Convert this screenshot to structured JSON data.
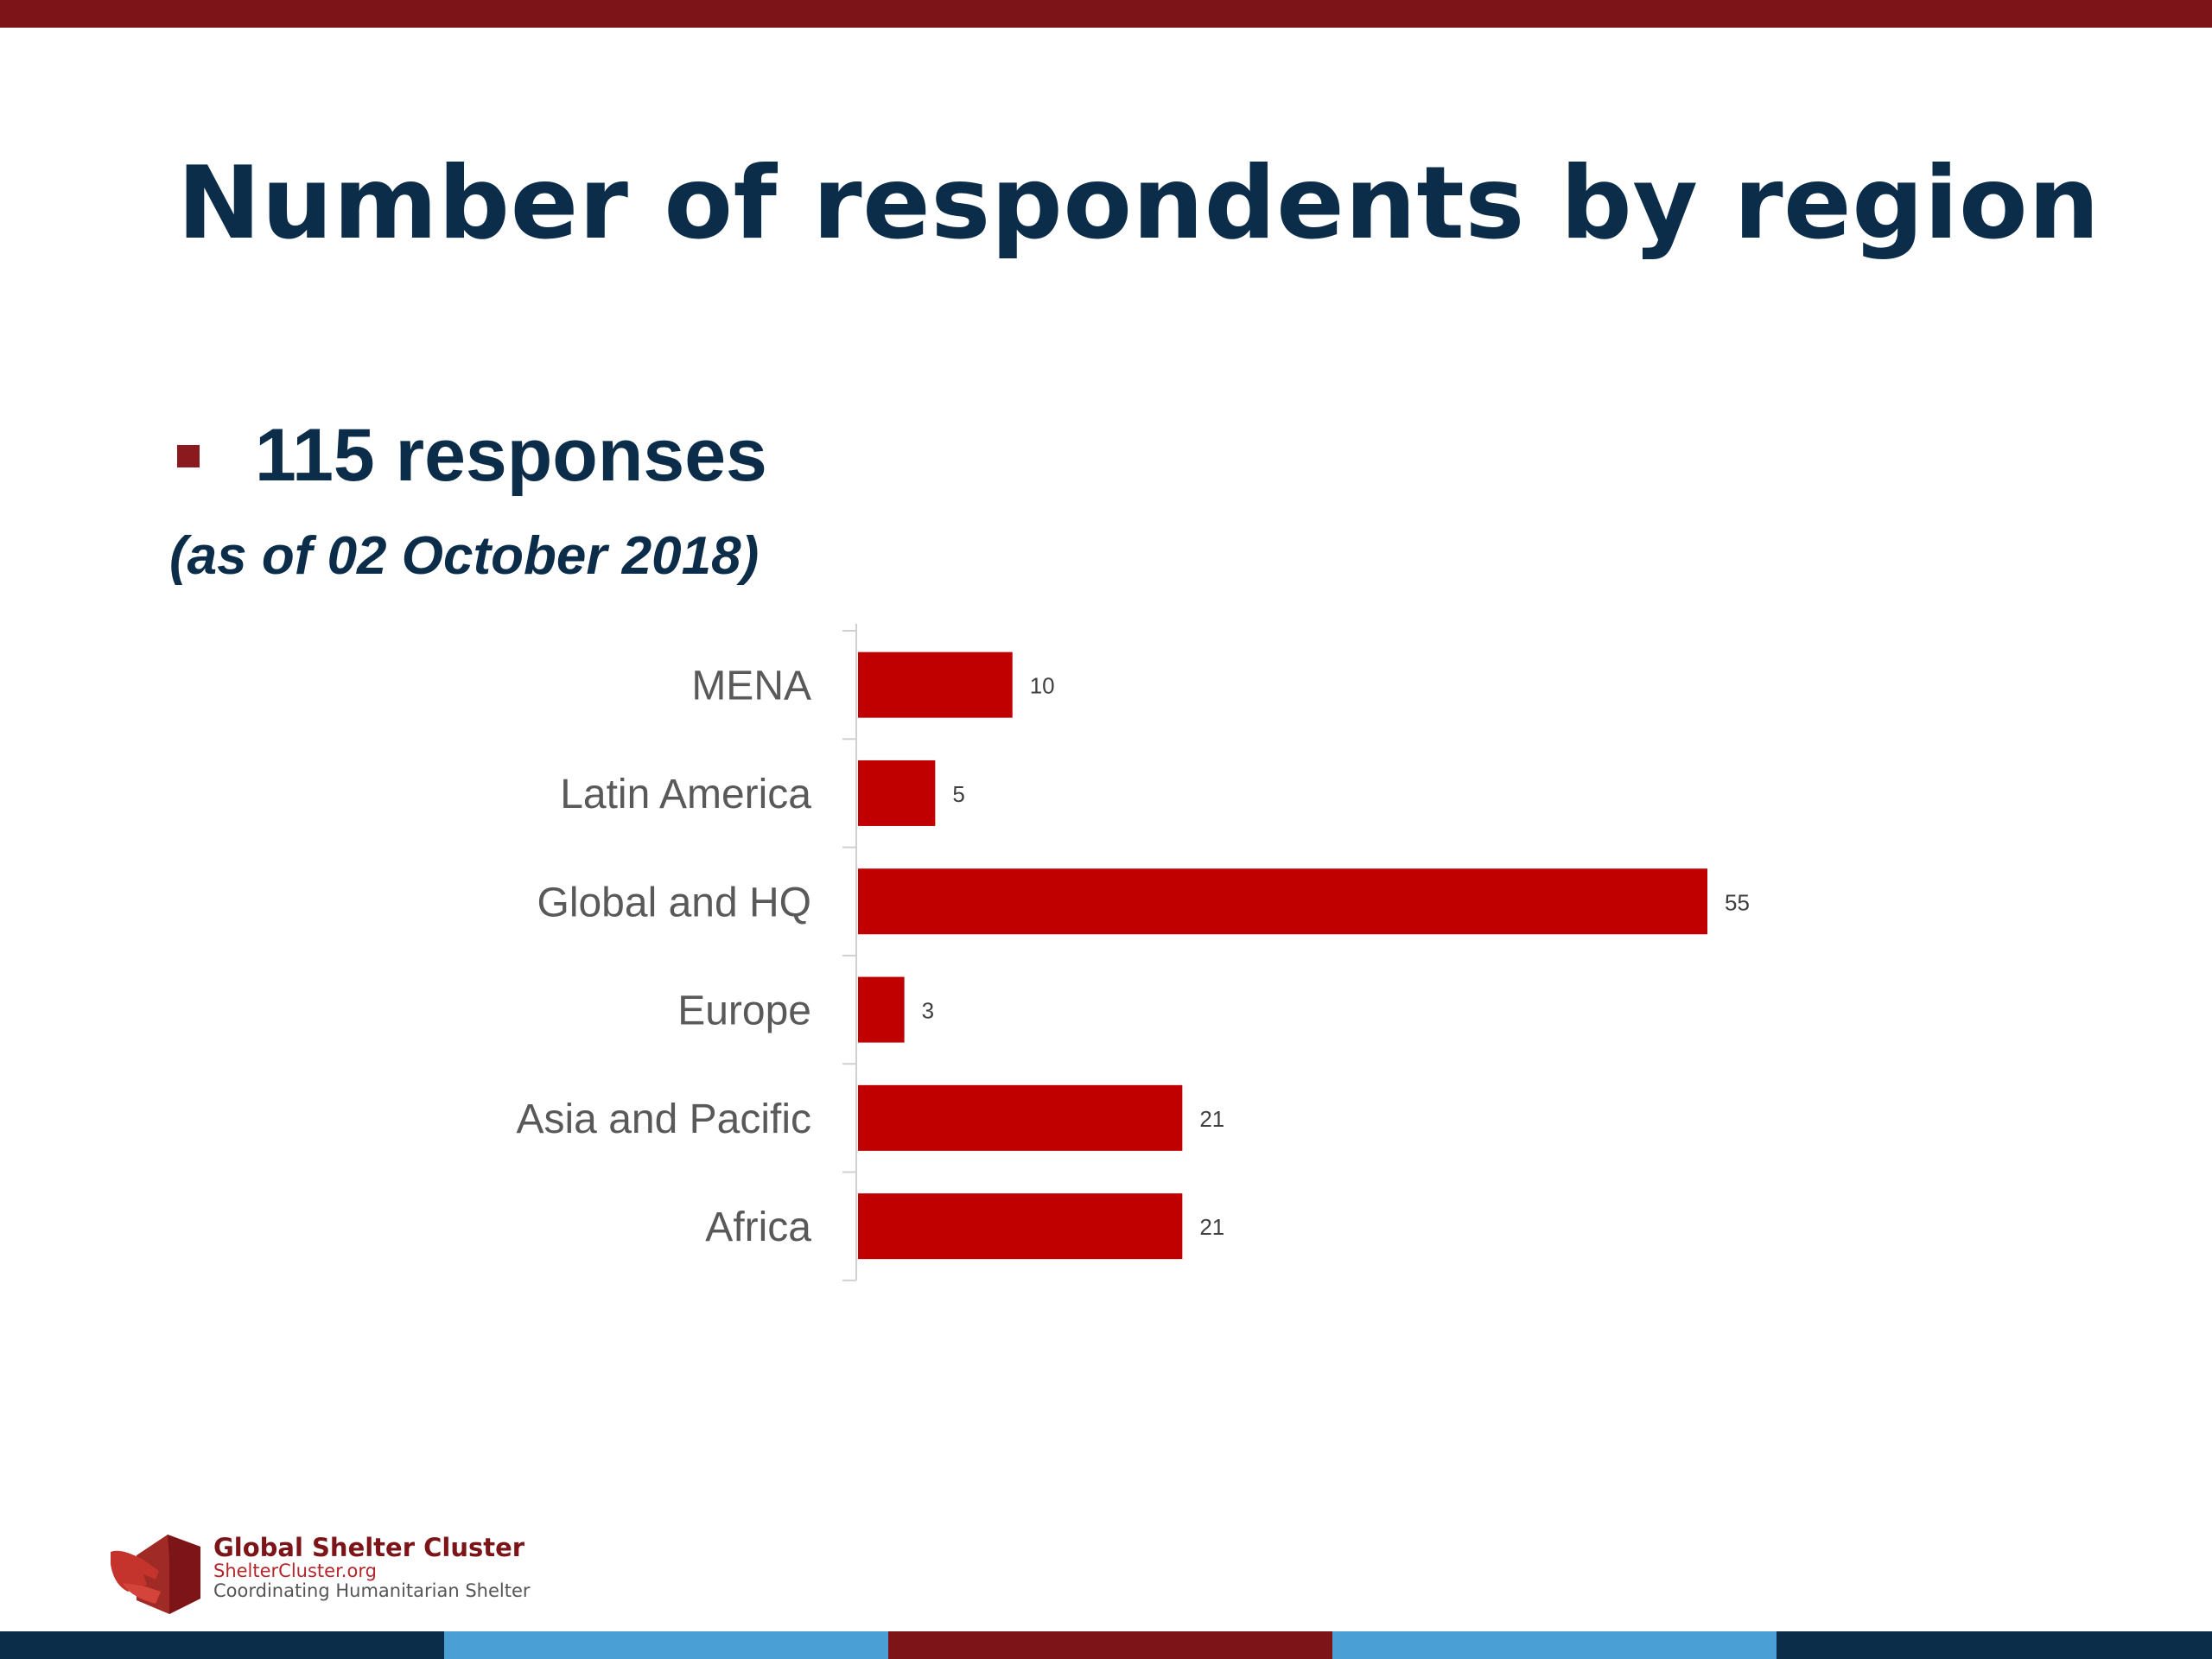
{
  "slide": {
    "title": "Number of respondents by region",
    "bullet": "115 responses",
    "subtitle": "(as of 02 October 2018)"
  },
  "colors": {
    "title": "#0c2d4a",
    "bar": "#c00000",
    "top_band": "#7d1418",
    "bottom_band": [
      "#0c2d4a",
      "#4a9fd4",
      "#7d1418",
      "#4a9fd4",
      "#0c2d4a"
    ]
  },
  "chart_data": {
    "type": "bar",
    "orientation": "horizontal",
    "categories": [
      "MENA",
      "Latin America",
      "Global and HQ",
      "Europe",
      "Asia and Pacific",
      "Africa"
    ],
    "values": [
      10,
      5,
      55,
      3,
      21,
      21
    ],
    "value_labels": [
      "10",
      "5",
      "55",
      "3",
      "21",
      "21"
    ],
    "xlim": [
      0,
      55
    ],
    "grid": false,
    "legend": "none"
  },
  "footer": {
    "org_name": "Global Shelter Cluster",
    "url": "ShelterCluster.org",
    "tagline": "Coordinating Humanitarian Shelter",
    "logo_icon": "hands-house-icon"
  }
}
